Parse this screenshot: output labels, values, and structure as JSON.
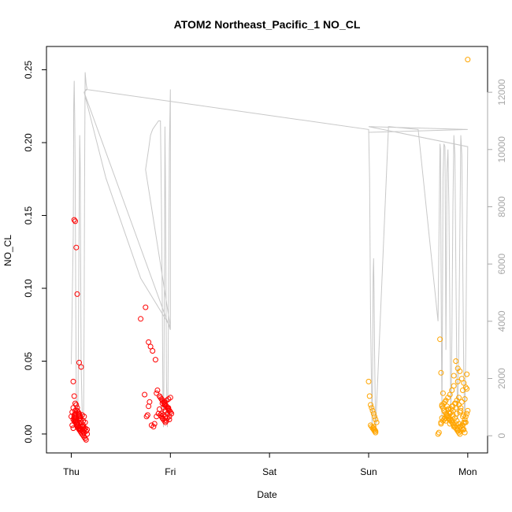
{
  "chart_data": {
    "type": "scatter",
    "title": "ATOM2 Northeast_Pacific_1 NO_CL",
    "xlabel": "Date",
    "ylabel": "NO_CL",
    "x_ticks": [
      "Thu",
      "Fri",
      "Sat",
      "Sun",
      "Mon"
    ],
    "xlim_days": [
      -0.25,
      4.2
    ],
    "ylim": [
      -0.013,
      0.266
    ],
    "y_ticks": [
      "0.00",
      "0.05",
      "0.10",
      "0.15",
      "0.20",
      "0.25"
    ],
    "y_tick_values": [
      0,
      0.05,
      0.1,
      0.15,
      0.2,
      0.25
    ],
    "y2lim": [
      -600,
      13600
    ],
    "y2_ticks": [
      "0",
      "2000",
      "4000",
      "6000",
      "8000",
      "10000",
      "12000"
    ],
    "y2_tick_values": [
      0,
      2000,
      4000,
      6000,
      8000,
      10000,
      12000
    ],
    "colors": {
      "series_1": "#ff0000",
      "series_2": "#ffa500",
      "altitude_line": "#c8c8c8",
      "axis": "#000000",
      "right_axis": "#a8a8a8"
    },
    "series": [
      {
        "color": "series_1",
        "x": [
          0.0,
          0.01,
          0.02,
          0.03,
          0.04,
          0.05,
          0.06,
          0.07,
          0.08,
          0.09,
          0.1,
          0.11,
          0.12,
          0.13,
          0.14,
          0.15,
          0.02,
          0.03,
          0.04,
          0.05,
          0.06,
          0.07,
          0.08,
          0.09,
          0.11,
          0.13,
          0.03,
          0.04,
          0.05,
          0.06,
          0.08,
          0.1,
          0.02,
          0.03,
          0.04,
          0.05,
          0.06,
          0.04,
          0.05,
          0.03,
          0.04,
          0.05,
          0.04,
          0.03,
          0.04,
          0.06,
          0.09,
          0.12,
          0.14,
          0.16,
          0.11,
          0.13,
          0.15,
          0.07,
          0.08,
          0.09,
          0.1,
          0.12,
          0.14,
          0.01,
          0.02,
          0.07,
          0.08,
          0.11,
          0.13,
          0.05,
          0.06,
          0.07,
          0.09,
          0.1,
          0.12,
          0.13,
          0.16,
          0.1,
          0.12,
          0.14,
          0.09,
          0.07,
          0.06,
          0.08,
          0.7,
          0.75,
          0.78,
          0.8,
          0.82,
          0.85,
          0.87,
          0.86,
          0.89,
          0.9,
          0.91,
          0.92,
          0.93,
          0.94,
          0.95,
          0.96,
          0.97,
          0.98,
          0.99,
          1.0,
          1.01,
          0.9,
          0.91,
          0.92,
          0.93,
          0.94,
          0.95,
          0.96,
          0.97,
          0.98,
          0.99,
          1.0,
          0.91,
          0.93,
          0.95,
          0.97,
          0.99,
          0.92,
          0.94,
          0.96,
          0.98,
          1.0,
          0.93,
          0.95,
          0.97,
          0.99,
          0.94,
          0.96,
          0.98,
          0.92,
          0.96,
          0.74,
          0.76,
          0.77,
          0.78,
          0.79,
          0.81,
          0.83,
          0.84,
          0.86,
          0.88,
          0.89
        ],
        "y": [
          0.012,
          0.015,
          0.018,
          0.011,
          0.009,
          0.007,
          0.005,
          0.004,
          0.003,
          0.002,
          0.001,
          0.0,
          -0.001,
          -0.002,
          -0.003,
          -0.004,
          0.01,
          0.012,
          0.014,
          0.009,
          0.008,
          0.006,
          0.004,
          0.003,
          0.002,
          0.001,
          0.147,
          0.146,
          0.128,
          0.096,
          0.049,
          0.046,
          0.036,
          0.026,
          0.021,
          0.02,
          0.018,
          0.016,
          0.014,
          0.013,
          0.012,
          0.011,
          0.01,
          0.009,
          0.008,
          0.007,
          0.006,
          0.005,
          0.004,
          0.003,
          0.005,
          0.003,
          0.002,
          0.013,
          0.012,
          0.011,
          0.01,
          0.009,
          0.008,
          0.006,
          0.004,
          0.015,
          0.014,
          0.013,
          0.012,
          0.009,
          0.007,
          0.005,
          0.004,
          0.003,
          0.002,
          0.001,
          0.0,
          0.008,
          0.006,
          0.004,
          0.012,
          0.014,
          0.016,
          0.01,
          0.079,
          0.087,
          0.063,
          0.06,
          0.057,
          0.051,
          0.03,
          0.028,
          0.026,
          0.025,
          0.024,
          0.023,
          0.022,
          0.021,
          0.02,
          0.019,
          0.018,
          0.017,
          0.016,
          0.015,
          0.014,
          0.013,
          0.012,
          0.011,
          0.01,
          0.009,
          0.008,
          0.019,
          0.018,
          0.017,
          0.016,
          0.015,
          0.014,
          0.013,
          0.012,
          0.011,
          0.01,
          0.021,
          0.022,
          0.023,
          0.024,
          0.025,
          0.018,
          0.016,
          0.014,
          0.012,
          0.02,
          0.019,
          0.018,
          0.011,
          0.009,
          0.027,
          0.012,
          0.013,
          0.019,
          0.022,
          0.006,
          0.005,
          0.007,
          0.012,
          0.014,
          0.017
        ]
      },
      {
        "color": "series_2",
        "x": [
          3.0,
          3.01,
          3.02,
          3.03,
          3.04,
          3.05,
          3.06,
          3.07,
          3.08,
          3.02,
          3.03,
          3.04,
          3.05,
          3.06,
          3.07,
          3.05,
          3.06,
          3.07,
          3.05,
          3.72,
          3.73,
          3.74,
          3.75,
          3.76,
          3.77,
          3.78,
          3.79,
          3.8,
          3.81,
          3.82,
          3.83,
          3.84,
          3.85,
          3.86,
          3.87,
          3.88,
          3.89,
          3.9,
          3.91,
          3.92,
          3.93,
          3.94,
          3.95,
          3.96,
          3.97,
          3.98,
          3.99,
          4.0,
          3.74,
          3.76,
          3.78,
          3.8,
          3.82,
          3.84,
          3.86,
          3.88,
          3.9,
          3.92,
          3.94,
          3.96,
          3.98,
          3.75,
          3.77,
          3.79,
          3.81,
          3.83,
          3.85,
          3.87,
          3.89,
          3.91,
          3.93,
          3.95,
          3.97,
          3.73,
          3.76,
          3.79,
          3.82,
          3.85,
          3.88,
          3.91,
          3.94,
          3.97,
          3.74,
          3.78,
          3.82,
          3.86,
          3.9,
          3.94,
          3.98,
          3.8,
          3.84,
          3.88,
          3.92,
          3.96,
          3.81,
          3.85,
          3.89,
          3.93,
          3.86,
          3.9,
          3.95,
          3.84,
          3.88,
          3.92,
          3.96,
          3.99,
          4.0,
          3.71,
          3.7,
          3.73,
          3.75,
          3.77,
          3.79,
          3.81,
          3.83,
          3.85,
          3.87,
          3.89,
          3.91,
          3.93,
          3.95,
          3.97,
          3.99
        ],
        "y": [
          0.036,
          0.026,
          0.02,
          0.018,
          0.016,
          0.014,
          0.012,
          0.01,
          0.008,
          0.006,
          0.005,
          0.004,
          0.003,
          0.002,
          0.001,
          0.004,
          0.003,
          0.002,
          0.005,
          0.065,
          0.042,
          0.02,
          0.018,
          0.016,
          0.015,
          0.014,
          0.013,
          0.012,
          0.011,
          0.01,
          0.009,
          0.008,
          0.007,
          0.006,
          0.005,
          0.004,
          0.003,
          0.002,
          0.001,
          0.0,
          0.002,
          0.004,
          0.006,
          0.008,
          0.01,
          0.012,
          0.014,
          0.016,
          0.019,
          0.021,
          0.023,
          0.025,
          0.027,
          0.03,
          0.033,
          0.05,
          0.045,
          0.043,
          0.038,
          0.035,
          0.032,
          0.028,
          0.022,
          0.019,
          0.017,
          0.015,
          0.013,
          0.011,
          0.009,
          0.007,
          0.005,
          0.003,
          0.001,
          0.008,
          0.01,
          0.012,
          0.014,
          0.016,
          0.018,
          0.02,
          0.022,
          0.024,
          0.011,
          0.009,
          0.007,
          0.005,
          0.003,
          0.006,
          0.008,
          0.017,
          0.019,
          0.021,
          0.015,
          0.013,
          0.01,
          0.012,
          0.014,
          0.016,
          0.04,
          0.036,
          0.03,
          0.009,
          0.007,
          0.005,
          0.003,
          0.041,
          0.257,
          0.001,
          0.0,
          0.007,
          0.009,
          0.011,
          0.013,
          0.015,
          0.017,
          0.019,
          0.021,
          0.023,
          0.025,
          0.018,
          0.012,
          0.008,
          0.031
        ]
      }
    ],
    "altitude_line": {
      "x": [
        0.0,
        0.02,
        0.025,
        0.03,
        0.035,
        0.04,
        0.045,
        0.05,
        0.06,
        0.065,
        0.07,
        0.075,
        0.08,
        0.085,
        0.09,
        0.095,
        0.1,
        0.11,
        0.12,
        0.125,
        0.13,
        0.135,
        0.14,
        0.145,
        0.15,
        0.16,
        0.13,
        0.35,
        0.55,
        0.7,
        1.0,
        0.75,
        0.78,
        0.8,
        0.82,
        0.84,
        0.86,
        0.88,
        0.9,
        0.91,
        0.92,
        0.925,
        0.93,
        0.935,
        0.94,
        0.945,
        0.95,
        0.955,
        0.96,
        0.97,
        0.975,
        0.98,
        0.985,
        0.99,
        1.0,
        1.0,
        0.13,
        0.15,
        3.0,
        3.01,
        3.02,
        3.03,
        3.035,
        3.04,
        3.045,
        3.05,
        3.055,
        3.06,
        3.07,
        3.2,
        3.5,
        3.7,
        3.72,
        3.725,
        3.73,
        3.735,
        3.74,
        3.745,
        3.75,
        3.76,
        3.77,
        3.775,
        3.78,
        3.785,
        3.79,
        3.8,
        3.81,
        3.82,
        3.83,
        3.84,
        3.85,
        3.86,
        3.87,
        3.88,
        3.89,
        3.9,
        3.91,
        3.92,
        3.93,
        3.94,
        3.95,
        3.96,
        3.97,
        3.98,
        3.99,
        4.0,
        3.0,
        4.0,
        3.0
      ],
      "y": [
        2500,
        7000,
        11500,
        12400,
        11000,
        9000,
        5000,
        1500,
        500,
        300,
        2000,
        5000,
        8000,
        10500,
        9500,
        6000,
        2500,
        800,
        200,
        1000,
        4000,
        9000,
        12700,
        12500,
        12300,
        12100,
        12000,
        9000,
        7000,
        5500,
        3800,
        9300,
        10000,
        10500,
        10700,
        10800,
        10900,
        11000,
        11000,
        8000,
        4000,
        1000,
        300,
        2000,
        6000,
        10800,
        9000,
        6000,
        2000,
        300,
        1500,
        4000,
        7000,
        10000,
        12100,
        3700,
        12000,
        12100,
        10700,
        9000,
        4000,
        1500,
        300,
        2000,
        5600,
        6200,
        5000,
        3000,
        200,
        10800,
        10700,
        4000,
        10200,
        10000,
        6000,
        3000,
        500,
        4000,
        9000,
        10200,
        10100,
        7000,
        3000,
        6000,
        9200,
        10000,
        8000,
        4000,
        500,
        3500,
        8000,
        10500,
        9800,
        6000,
        2000,
        600,
        3500,
        7000,
        10500,
        9800,
        6000,
        2000,
        500,
        3000,
        7000,
        10100,
        10800,
        10700,
        10600
      ]
    }
  }
}
